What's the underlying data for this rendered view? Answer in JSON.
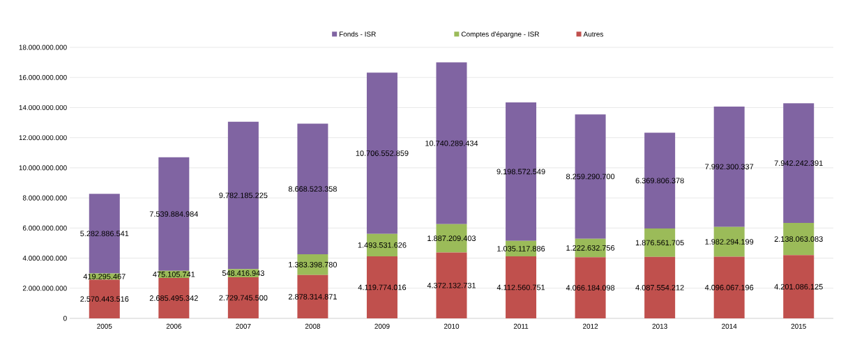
{
  "chart_data": {
    "type": "bar",
    "stacked": true,
    "categories": [
      "2005",
      "2006",
      "2007",
      "2008",
      "2009",
      "2010",
      "2011",
      "2012",
      "2013",
      "2014",
      "2015"
    ],
    "series": [
      {
        "name": "Autres",
        "color": "#c0504d",
        "values": [
          2570443516,
          2685495342,
          2729745500,
          2878314871,
          4119774016,
          4372132731,
          4112560751,
          4066184098,
          4087554212,
          4096067196,
          4201086125
        ],
        "value_labels": [
          "2.570.443.516",
          "2.685.495.342",
          "2.729.745.500",
          "2.878.314.871",
          "4.119.774.016",
          "4.372.132.731",
          "4.112.560.751",
          "4.066.184.098",
          "4.087.554.212",
          "4.096.067.196",
          "4.201.086.125"
        ]
      },
      {
        "name": "Comptes d'épargne - ISR",
        "color": "#9bbb59",
        "values": [
          419295467,
          475105741,
          548416943,
          1383398780,
          1493531626,
          1887209403,
          1035117886,
          1222632756,
          1876561705,
          1982294199,
          2138063083
        ],
        "value_labels": [
          "419.295.467",
          "475.105.741",
          "548.416.943",
          "1.383.398.780",
          "1.493.531.626",
          "1.887.209.403",
          "1.035.117.886",
          "1.222.632.756",
          "1.876.561.705",
          "1.982.294.199",
          "2.138.063.083"
        ]
      },
      {
        "name": "Fonds - ISR",
        "color": "#8064a2",
        "values": [
          5282886541,
          7539884984,
          9782185225,
          8668523358,
          10706552859,
          10740289434,
          9198572549,
          8259290700,
          6369806378,
          7992300337,
          7942242391
        ],
        "value_labels": [
          "5.282.886.541",
          "7.539.884.984",
          "9.782.185.225",
          "8.668.523.358",
          "10.706.552.859",
          "10.740.289.434",
          "9.198.572.549",
          "8.259.290.700",
          "6.369.806.378",
          "7.992.300.337",
          "7.942.242.391"
        ]
      }
    ],
    "ylim": [
      0,
      18000000000
    ],
    "yticks": [
      {
        "value": 0,
        "label": "0"
      },
      {
        "value": 2000000000,
        "label": "2.000.000.000"
      },
      {
        "value": 4000000000,
        "label": "4.000.000.000"
      },
      {
        "value": 6000000000,
        "label": "6.000.000.000"
      },
      {
        "value": 8000000000,
        "label": "8.000.000.000"
      },
      {
        "value": 10000000000,
        "label": "10.000.000.000"
      },
      {
        "value": 12000000000,
        "label": "12.000.000.000"
      },
      {
        "value": 14000000000,
        "label": "14.000.000.000"
      },
      {
        "value": 16000000000,
        "label": "16.000.000.000"
      },
      {
        "value": 18000000000,
        "label": "18.000.000.000"
      }
    ],
    "grid": "y",
    "legend": "top"
  }
}
